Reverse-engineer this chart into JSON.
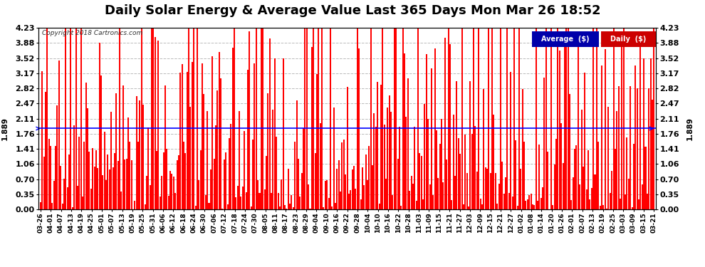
{
  "title": "Daily Solar Energy & Average Value Last 365 Days Mon Mar 26 18:52",
  "copyright": "Copyright 2018 Cartronics.com",
  "average_value": 1.889,
  "average_label": "1.889",
  "ylim_max": 4.23,
  "yticks": [
    0.0,
    0.35,
    0.7,
    1.06,
    1.41,
    1.76,
    2.11,
    2.47,
    2.82,
    3.17,
    3.52,
    3.88,
    4.23
  ],
  "bar_color": "#FF0000",
  "avg_line_color": "#0000FF",
  "legend_avg_bg": "#0000AA",
  "legend_daily_bg": "#CC0000",
  "background_color": "#FFFFFF",
  "grid_color": "#AAAAAA",
  "title_fontsize": 13,
  "x_labels": [
    "03-26",
    "04-01",
    "04-07",
    "04-13",
    "04-19",
    "04-25",
    "05-01",
    "05-07",
    "05-13",
    "05-19",
    "05-25",
    "05-31",
    "06-06",
    "06-12",
    "06-18",
    "06-24",
    "06-30",
    "07-06",
    "07-12",
    "07-18",
    "07-24",
    "07-30",
    "08-05",
    "08-11",
    "08-17",
    "08-23",
    "08-29",
    "09-04",
    "09-10",
    "09-16",
    "09-22",
    "09-28",
    "10-04",
    "10-10",
    "10-16",
    "10-22",
    "10-28",
    "11-03",
    "11-09",
    "11-15",
    "11-21",
    "11-27",
    "12-03",
    "12-09",
    "12-15",
    "12-21",
    "12-27",
    "01-02",
    "01-08",
    "01-14",
    "01-20",
    "01-26",
    "02-01",
    "02-07",
    "02-13",
    "02-19",
    "02-25",
    "03-03",
    "03-09",
    "03-15",
    "03-21"
  ],
  "num_bars": 365,
  "seed": 7
}
